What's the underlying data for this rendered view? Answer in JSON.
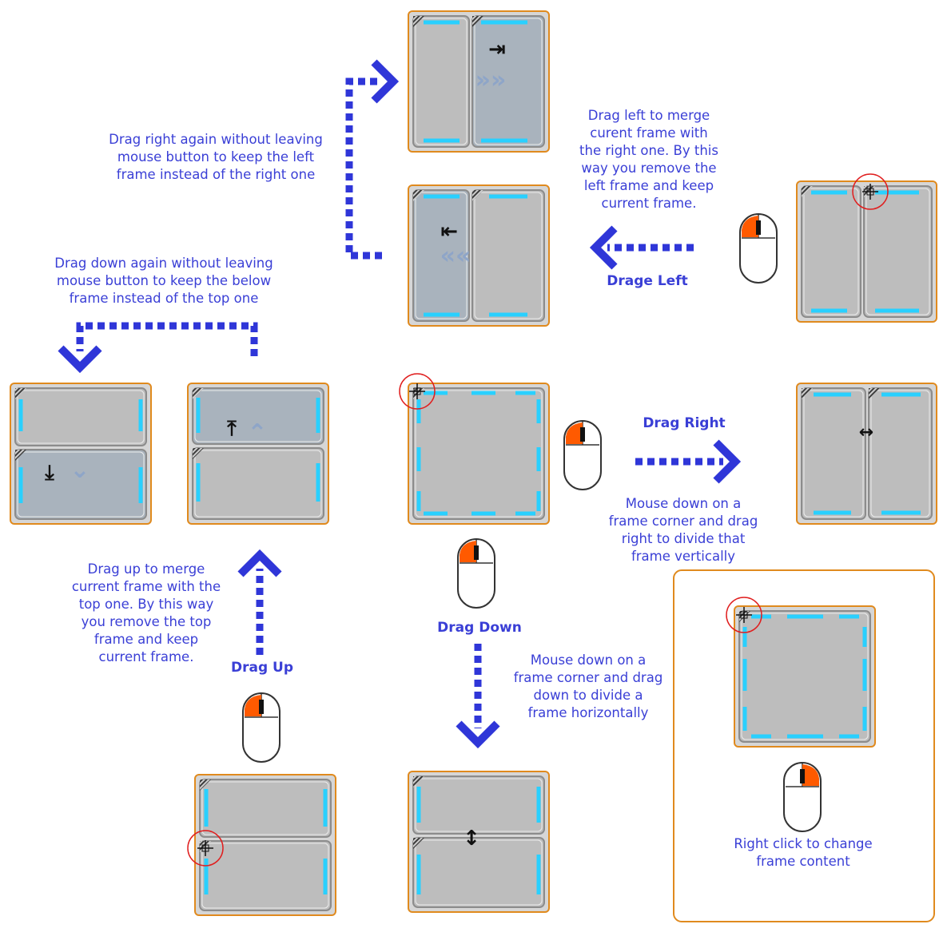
{
  "diagram": {
    "colors": {
      "frame_border": "#e08a1e",
      "pane_fill": "#bdbdbd",
      "pane_active_fill": "#a9b3bd",
      "pane_border": "#8c8c8c",
      "highlight": "#29d0ff",
      "arrow": "#2f36d8",
      "text": "#3a3fd6",
      "mouse_button": "#ff5a00",
      "cursor_circle": "#e01e1e"
    },
    "icons": [
      "mouse-icon",
      "merge-right-icon",
      "merge-left-icon",
      "merge-up-icon",
      "merge-down-icon",
      "split-horizontal-icon",
      "split-vertical-icon",
      "frame-corner-cursor-icon"
    ],
    "captions": {
      "drag_right_again": "Drag right again without leaving\nmouse button to keep the left\nframe instead of the right one",
      "drag_left_merge": "Drag left to merge\ncurent frame with\nthe right one. By this\nway you remove the\nleft frame and keep\ncurrent frame.",
      "drag_down_again": "Drag down again without leaving\nmouse button to keep the below\nframe instead of the top one",
      "drag_right_divide": "Mouse down on a\nframe corner and drag\nright to divide that\nframe vertically",
      "drag_up_merge": "Drag up to merge\ncurrent frame with the\ntop one. By this way\nyou remove the top\nframe and keep\ncurrent frame.",
      "drag_down_divide": "Mouse down on a\nframe corner and drag\ndown to divide a\nframe horizontally",
      "right_click": "Right click to change\nframe content"
    },
    "labels": {
      "drag_left": "Drage Left",
      "drag_right": "Drag Right",
      "drag_down": "Drag Down",
      "drag_up": "Drag Up"
    }
  }
}
